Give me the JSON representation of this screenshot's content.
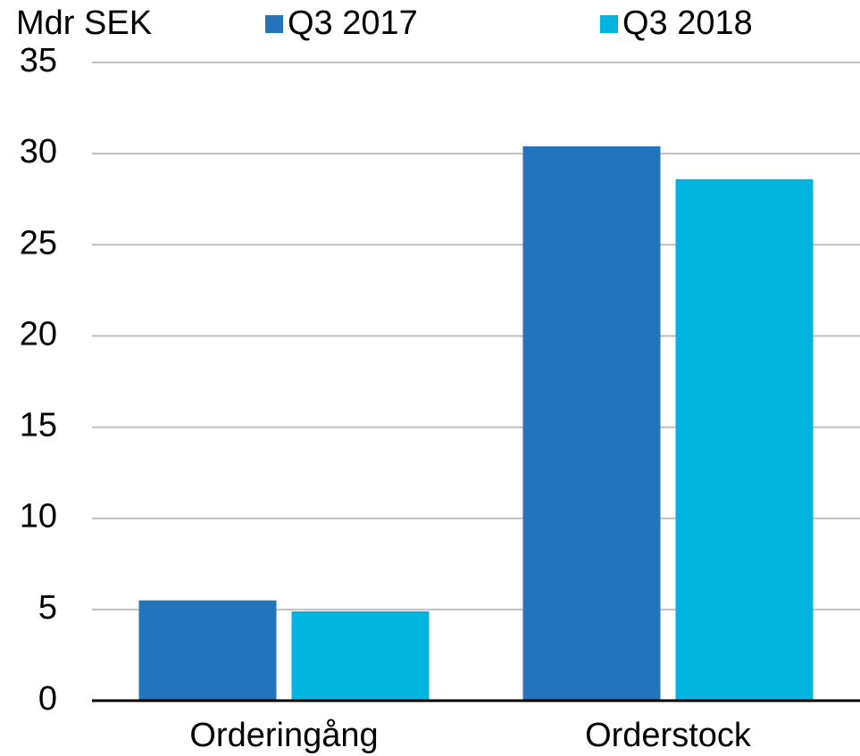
{
  "chart_data": {
    "type": "bar",
    "y_label": "Mdr SEK",
    "categories": [
      "Orderingång",
      "Orderstock"
    ],
    "series": [
      {
        "name": "Q3 2017",
        "color": "#2474bc",
        "values": [
          5.5,
          30.4
        ]
      },
      {
        "name": "Q3 2018",
        "color": "#00b4e0",
        "values": [
          4.9,
          28.6
        ]
      }
    ],
    "ylim": [
      0,
      35
    ],
    "yticks": [
      0,
      5,
      10,
      15,
      20,
      25,
      30,
      35
    ],
    "grid": true,
    "legend": "top"
  }
}
